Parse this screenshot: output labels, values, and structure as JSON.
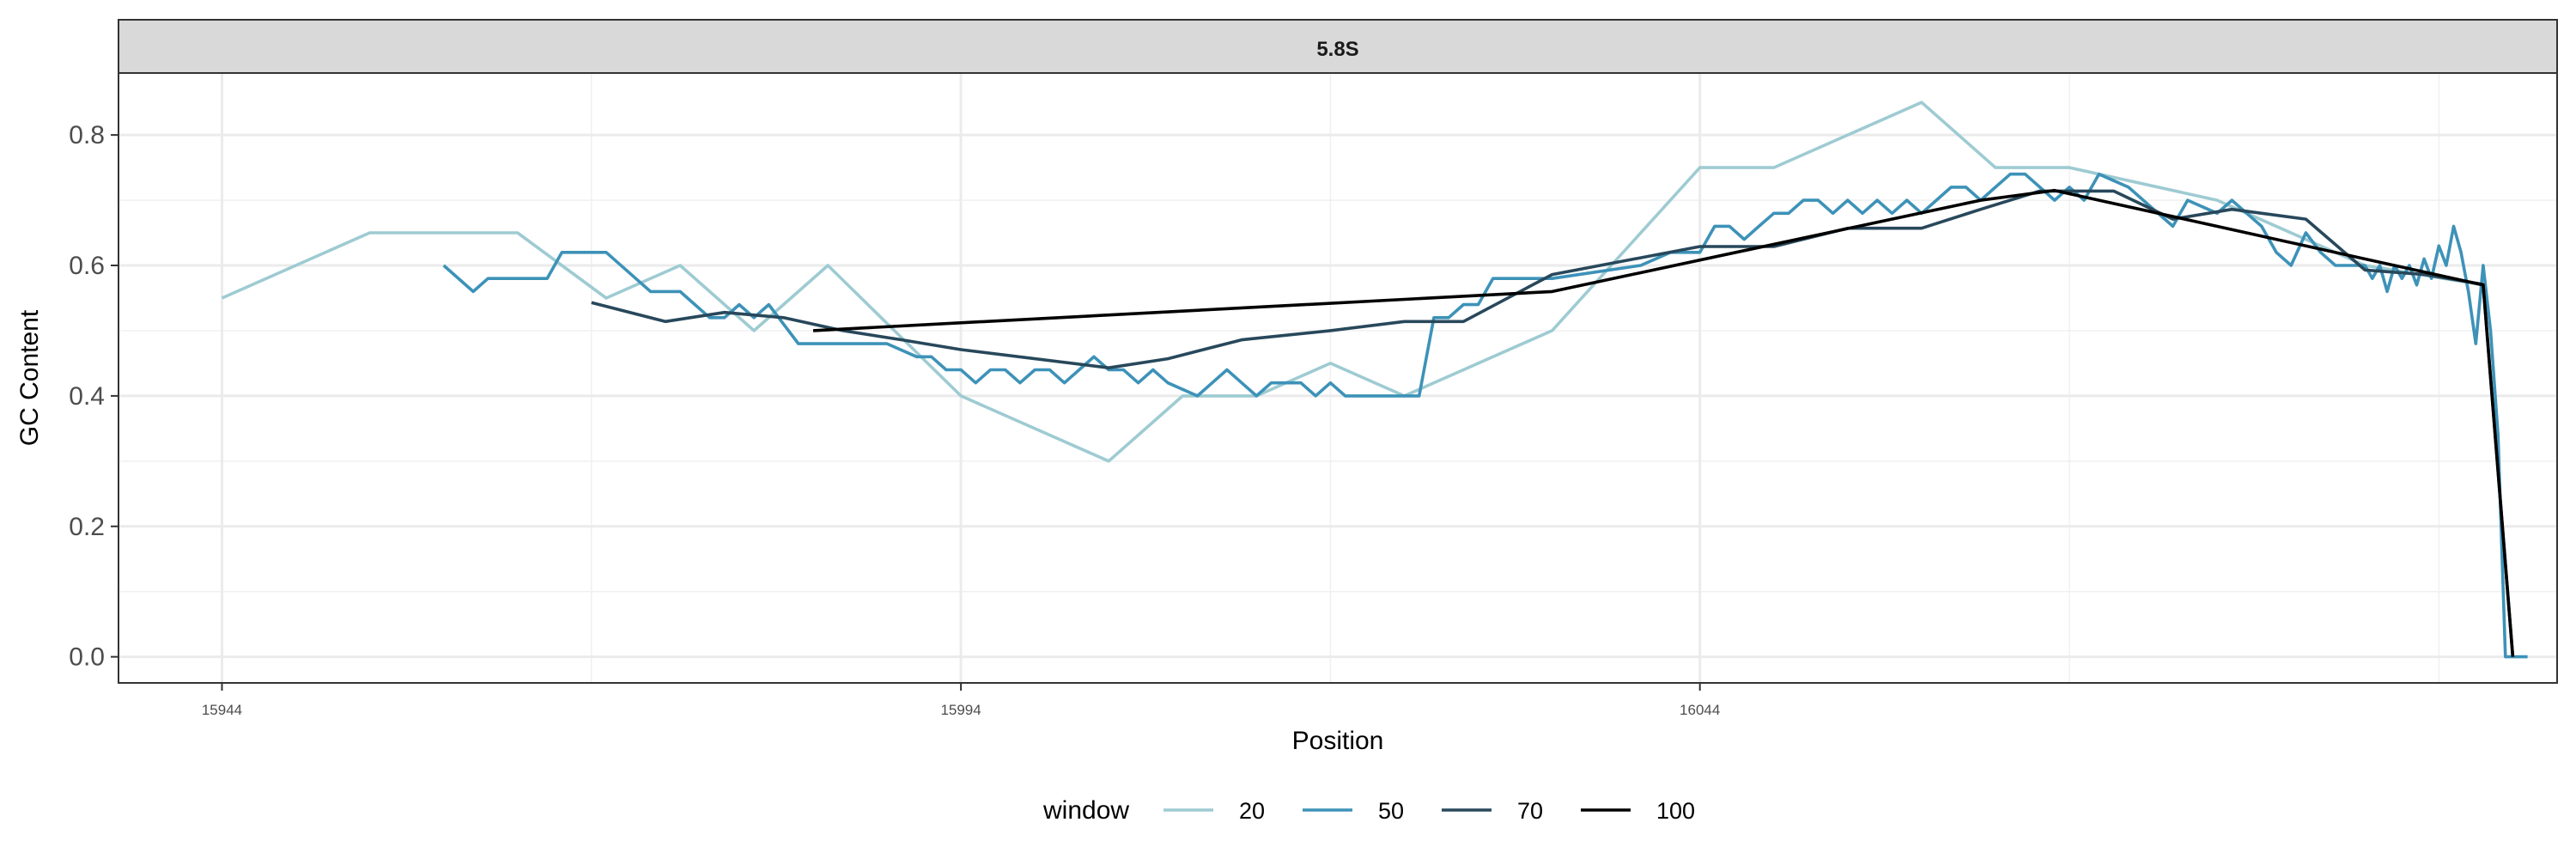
{
  "chart_data": {
    "type": "line",
    "facet_title": "5.8S",
    "xlabel": "Position",
    "ylabel": "GC Content",
    "xlim": [
      15937,
      16102
    ],
    "ylim": [
      -0.04,
      0.895
    ],
    "x_ticks": [
      15944,
      15994,
      16044
    ],
    "x_minor_ticks": [
      15969,
      16019,
      16069,
      16094
    ],
    "y_ticks": [
      0.0,
      0.2,
      0.4,
      0.6,
      0.8
    ],
    "y_tick_labels": [
      "0.0",
      "0.2",
      "0.4",
      "0.6",
      "0.8"
    ],
    "grid": true,
    "legend": {
      "title": "window",
      "position": "bottom"
    },
    "series": [
      {
        "name": "20",
        "color": "#9ecbd2",
        "x": [
          15944,
          15954,
          15964,
          15970,
          15975,
          15980,
          15985,
          15994,
          16004,
          16009,
          16014,
          16019,
          16024,
          16034,
          16044,
          16049,
          16059,
          16064,
          16069,
          16079,
          16089,
          16097
        ],
        "y": [
          0.55,
          0.65,
          0.65,
          0.55,
          0.6,
          0.5,
          0.6,
          0.4,
          0.3,
          0.4,
          0.4,
          0.45,
          0.4,
          0.5,
          0.75,
          0.75,
          0.85,
          0.75,
          0.75,
          0.7,
          0.6,
          0.57
        ]
      },
      {
        "name": "50",
        "color": "#3d92b8",
        "x": [
          15959,
          15961,
          15962,
          15966,
          15967,
          15970,
          15972,
          15973,
          15975,
          15976,
          15977,
          15978,
          15979,
          15980,
          15981,
          15983,
          15989,
          15991,
          15992,
          15993,
          15994,
          15995,
          15996,
          15997,
          15998,
          15999,
          16000,
          16001,
          16002,
          16003,
          16004,
          16005,
          16006,
          16007,
          16008,
          16010,
          16011,
          16012,
          16013,
          16014,
          16015,
          16016,
          16017,
          16018,
          16019,
          16020,
          16025,
          16026,
          16027,
          16028,
          16029,
          16030,
          16034,
          16040,
          16042,
          16044,
          16045,
          16046,
          16047,
          16048,
          16049,
          16050,
          16051,
          16052,
          16053,
          16054,
          16055,
          16056,
          16057,
          16058,
          16059,
          16060,
          16061,
          16062,
          16063,
          16064,
          16065,
          16066,
          16067,
          16068,
          16069,
          16070,
          16071,
          16072,
          16073,
          16074,
          16075,
          16076,
          16077,
          16079,
          16080,
          16081,
          16082,
          16083,
          16084,
          16085,
          16086,
          16087,
          16088,
          16089,
          16089.5,
          16090,
          16090.5,
          16091,
          16091.5,
          16092,
          16092.5,
          16093,
          16093.5,
          16094,
          16094.5,
          16095,
          16095.5,
          16096,
          16096.5,
          16097,
          16097.5,
          16098,
          16098.5,
          16099,
          16099.5,
          16100
        ],
        "y": [
          0.6,
          0.56,
          0.58,
          0.58,
          0.62,
          0.62,
          0.58,
          0.56,
          0.56,
          0.54,
          0.52,
          0.52,
          0.54,
          0.52,
          0.54,
          0.48,
          0.48,
          0.46,
          0.46,
          0.44,
          0.44,
          0.42,
          0.44,
          0.44,
          0.42,
          0.44,
          0.44,
          0.42,
          0.44,
          0.46,
          0.44,
          0.44,
          0.42,
          0.44,
          0.42,
          0.4,
          0.42,
          0.44,
          0.42,
          0.4,
          0.42,
          0.42,
          0.42,
          0.4,
          0.42,
          0.4,
          0.4,
          0.52,
          0.52,
          0.54,
          0.54,
          0.58,
          0.58,
          0.6,
          0.62,
          0.62,
          0.66,
          0.66,
          0.64,
          0.66,
          0.68,
          0.68,
          0.7,
          0.7,
          0.68,
          0.7,
          0.68,
          0.7,
          0.68,
          0.7,
          0.68,
          0.7,
          0.72,
          0.72,
          0.7,
          0.72,
          0.74,
          0.74,
          0.72,
          0.7,
          0.72,
          0.7,
          0.74,
          0.73,
          0.72,
          0.7,
          0.68,
          0.66,
          0.7,
          0.68,
          0.7,
          0.68,
          0.66,
          0.62,
          0.6,
          0.65,
          0.62,
          0.6,
          0.6,
          0.6,
          0.58,
          0.6,
          0.56,
          0.6,
          0.58,
          0.6,
          0.57,
          0.61,
          0.58,
          0.63,
          0.6,
          0.66,
          0.62,
          0.56,
          0.48,
          0.6,
          0.5,
          0.34,
          0.0,
          0.0,
          0.0,
          0.0
        ]
      },
      {
        "name": "70",
        "color": "#28485b",
        "x": [
          15969,
          15974,
          15978,
          15982,
          15986,
          15990,
          15994,
          16004,
          16008,
          16013,
          16019,
          16024,
          16028,
          16034,
          16044,
          16049,
          16054,
          16059,
          16063,
          16067,
          16072,
          16076,
          16080,
          16085,
          16089,
          16093,
          16097,
          16099
        ],
        "y": [
          0.543,
          0.514,
          0.528,
          0.52,
          0.5,
          0.486,
          0.471,
          0.443,
          0.457,
          0.486,
          0.5,
          0.514,
          0.514,
          0.586,
          0.629,
          0.629,
          0.657,
          0.657,
          0.686,
          0.714,
          0.714,
          0.671,
          0.686,
          0.671,
          0.593,
          0.586,
          0.571,
          0.0
        ]
      },
      {
        "name": "100",
        "color": "#000000",
        "x": [
          15984,
          16034,
          16063,
          16068,
          16097,
          16099
        ],
        "y": [
          0.5,
          0.56,
          0.7,
          0.715,
          0.57,
          0.0
        ]
      }
    ]
  }
}
